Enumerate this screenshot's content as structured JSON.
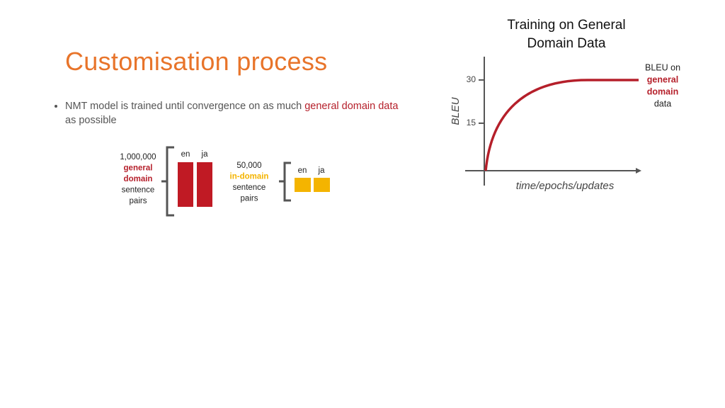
{
  "title": "Customisation process",
  "bullet": {
    "parts": [
      "NMT model is trained until convergence on as much ",
      "general domain data",
      " as possible"
    ]
  },
  "diagram": {
    "general": {
      "lines": [
        "1,000,000",
        "general",
        "domain",
        "sentence",
        "pairs"
      ],
      "columns": [
        "en",
        "ja"
      ]
    },
    "in_domain": {
      "lines": [
        "50,000",
        "in-domain",
        "sentence",
        "pairs"
      ],
      "columns": [
        "en",
        "ja"
      ]
    }
  },
  "chart": {
    "title_lines": [
      "Training on General",
      "Domain Data"
    ],
    "y_label": "BLEU",
    "x_label": "time/epochs/updates",
    "yticks": [
      15,
      30
    ],
    "annotation_lines": [
      "BLEU on",
      "general",
      "domain",
      "data"
    ]
  }
}
